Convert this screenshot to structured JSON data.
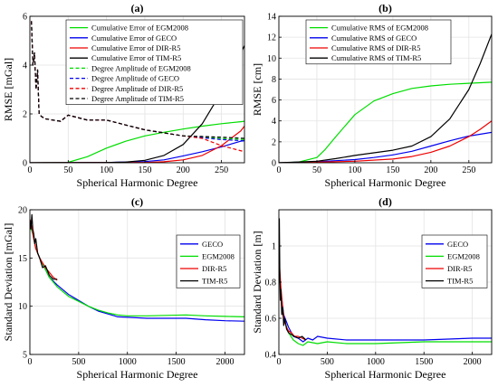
{
  "chart_data": [
    {
      "panel": "(a)",
      "type": "line",
      "xlabel": "Spherical Harmonic Degree",
      "ylabel": "RMSE [mGal]",
      "xlim": [
        0,
        280
      ],
      "ylim": [
        0,
        6
      ],
      "xticks": [
        0,
        50,
        100,
        150,
        200,
        250
      ],
      "yticks": [
        0,
        2,
        4,
        6
      ],
      "grid": true,
      "legend": "top-right",
      "series": [
        {
          "name": "Cumulative Error of EGM2008",
          "color": "#00dd00",
          "dash": "solid",
          "x": [
            0,
            50,
            75,
            100,
            125,
            150,
            175,
            200,
            225,
            250,
            275,
            280
          ],
          "y": [
            0,
            0.02,
            0.25,
            0.6,
            0.88,
            1.1,
            1.25,
            1.38,
            1.5,
            1.6,
            1.68,
            1.7
          ]
        },
        {
          "name": "Cumulative Error of GECO",
          "color": "#0000ee",
          "dash": "solid",
          "x": [
            0,
            100,
            150,
            175,
            200,
            225,
            250,
            275,
            280
          ],
          "y": [
            0,
            0.01,
            0.05,
            0.12,
            0.28,
            0.45,
            0.65,
            0.88,
            0.9
          ]
        },
        {
          "name": "Cumulative Error of DIR-R5",
          "color": "#ee0000",
          "dash": "solid",
          "x": [
            0,
            150,
            175,
            200,
            225,
            250,
            275,
            280
          ],
          "y": [
            0,
            0.01,
            0.04,
            0.12,
            0.3,
            0.7,
            1.3,
            1.5
          ]
        },
        {
          "name": "Cumulative Error of TIM-R5",
          "color": "#000000",
          "dash": "solid",
          "x": [
            0,
            100,
            125,
            150,
            175,
            200,
            225,
            250,
            265,
            280
          ],
          "y": [
            0,
            0.01,
            0.03,
            0.1,
            0.3,
            0.75,
            1.6,
            2.9,
            3.8,
            4.8
          ]
        },
        {
          "name": "Degree Amplitude of EGM2008",
          "color": "#00dd00",
          "dash": "dashed",
          "x": [
            2,
            4,
            6,
            8,
            10,
            12,
            15,
            20,
            30,
            40,
            50,
            75,
            100,
            150,
            200,
            250,
            280
          ],
          "y": [
            5.8,
            4.0,
            4.5,
            3.0,
            3.8,
            2.0,
            1.9,
            1.8,
            1.75,
            1.7,
            1.95,
            1.75,
            1.75,
            1.35,
            1.1,
            1.0,
            0.95
          ]
        },
        {
          "name": "Degree Amplitude of GECO",
          "color": "#0000ee",
          "dash": "dashed",
          "x": [
            2,
            4,
            6,
            8,
            10,
            12,
            15,
            20,
            30,
            40,
            50,
            75,
            100,
            150,
            200,
            250,
            280
          ],
          "y": [
            5.8,
            4.0,
            4.5,
            3.0,
            3.8,
            2.0,
            1.9,
            1.8,
            1.75,
            1.7,
            1.95,
            1.75,
            1.75,
            1.35,
            1.1,
            0.95,
            0.9
          ]
        },
        {
          "name": "Degree Amplitude of DIR-R5",
          "color": "#ee0000",
          "dash": "dashed",
          "x": [
            2,
            4,
            6,
            8,
            10,
            12,
            15,
            20,
            30,
            40,
            50,
            75,
            100,
            150,
            200,
            225,
            250,
            280
          ],
          "y": [
            5.8,
            4.0,
            4.5,
            3.0,
            3.8,
            2.0,
            1.9,
            1.8,
            1.75,
            1.7,
            1.95,
            1.75,
            1.75,
            1.35,
            1.1,
            1.0,
            0.7,
            0.45
          ]
        },
        {
          "name": "Degree Amplitude of TIM-R5",
          "color": "#000000",
          "dash": "dashed",
          "x": [
            2,
            4,
            6,
            8,
            10,
            12,
            15,
            20,
            30,
            40,
            50,
            75,
            100,
            150,
            200,
            250,
            280
          ],
          "y": [
            5.8,
            4.0,
            4.5,
            3.0,
            3.8,
            2.0,
            1.9,
            1.8,
            1.75,
            1.7,
            1.95,
            1.75,
            1.75,
            1.35,
            1.1,
            1.05,
            1.0
          ]
        }
      ]
    },
    {
      "panel": "(b)",
      "type": "line",
      "xlabel": "Spherical Harmonic Degree",
      "ylabel": "RMSE [cm]",
      "xlim": [
        0,
        280
      ],
      "ylim": [
        0,
        14
      ],
      "xticks": [
        0,
        50,
        100,
        150,
        200,
        250
      ],
      "yticks": [
        0,
        2,
        4,
        6,
        8,
        10,
        12,
        14
      ],
      "grid": true,
      "legend": "top-left",
      "series": [
        {
          "name": "Cumulative RMS of EGM2008",
          "color": "#00dd00",
          "dash": "solid",
          "x": [
            0,
            25,
            50,
            60,
            75,
            100,
            125,
            150,
            175,
            200,
            225,
            250,
            280
          ],
          "y": [
            0,
            0.05,
            0.5,
            1.2,
            2.5,
            4.6,
            5.9,
            6.6,
            7.1,
            7.35,
            7.5,
            7.6,
            7.7
          ]
        },
        {
          "name": "Cumulative RMS of GECO",
          "color": "#0000ee",
          "dash": "solid",
          "x": [
            0,
            50,
            100,
            125,
            150,
            175,
            200,
            225,
            250,
            280
          ],
          "y": [
            0,
            0.1,
            0.3,
            0.5,
            0.75,
            1.1,
            1.6,
            2.1,
            2.55,
            2.9
          ]
        },
        {
          "name": "Cumulative RMS of DIR-R5",
          "color": "#ee0000",
          "dash": "solid",
          "x": [
            0,
            50,
            100,
            150,
            175,
            200,
            225,
            250,
            265,
            280
          ],
          "y": [
            0,
            0.05,
            0.15,
            0.35,
            0.6,
            1.0,
            1.6,
            2.5,
            3.2,
            4.0
          ]
        },
        {
          "name": "Cumulative RMS of TIM-R5",
          "color": "#000000",
          "dash": "solid",
          "x": [
            0,
            50,
            75,
            100,
            125,
            150,
            175,
            200,
            225,
            250,
            265,
            280
          ],
          "y": [
            0,
            0.15,
            0.4,
            0.7,
            0.95,
            1.2,
            1.6,
            2.5,
            4.2,
            7.0,
            9.5,
            12.3
          ]
        }
      ]
    },
    {
      "panel": "(c)",
      "type": "line",
      "xlabel": "Spherical Harmonic Degree",
      "ylabel": "Standard Deviation [mGal]",
      "xlim": [
        0,
        2200
      ],
      "ylim": [
        5,
        20
      ],
      "xticks": [
        0,
        500,
        1000,
        1500,
        2000
      ],
      "yticks": [
        5,
        10,
        15,
        20
      ],
      "grid": true,
      "legend": "top-right",
      "series": [
        {
          "name": "GECO",
          "color": "#0000ee",
          "dash": "solid",
          "x": [
            0,
            30,
            60,
            100,
            150,
            200,
            280,
            400,
            500,
            600,
            700,
            800,
            900,
            1000,
            1200,
            1400,
            1600,
            1800,
            2000,
            2200
          ],
          "y": [
            18.5,
            17.5,
            16.0,
            15.0,
            14.0,
            13.0,
            12.2,
            11.2,
            10.6,
            10.0,
            9.5,
            9.2,
            8.9,
            8.85,
            8.75,
            8.75,
            8.75,
            8.6,
            8.5,
            8.45
          ]
        },
        {
          "name": "EGM2008",
          "color": "#00dd00",
          "dash": "solid",
          "x": [
            0,
            30,
            60,
            100,
            150,
            200,
            280,
            400,
            500,
            600,
            700,
            800,
            900,
            1000,
            1200,
            1400,
            1600,
            1800,
            2000,
            2200
          ],
          "y": [
            18.5,
            17.5,
            16.0,
            15.0,
            14.0,
            13.0,
            12.0,
            11.0,
            10.5,
            10.0,
            9.6,
            9.3,
            9.1,
            9.0,
            9.0,
            9.05,
            9.1,
            9.0,
            8.95,
            8.9
          ]
        },
        {
          "name": "DIR-R5",
          "color": "#ee0000",
          "dash": "solid",
          "x": [
            0,
            20,
            40,
            60,
            80,
            100,
            130,
            160,
            200,
            240,
            280
          ],
          "y": [
            19.0,
            18.2,
            17.0,
            16.0,
            15.5,
            15.0,
            14.5,
            14.0,
            13.5,
            13.0,
            12.7
          ]
        },
        {
          "name": "TIM-R5",
          "color": "#000000",
          "dash": "solid",
          "x": [
            0,
            10,
            20,
            30,
            40,
            50,
            60,
            80,
            100,
            130,
            160,
            200,
            240,
            280
          ],
          "y": [
            19.0,
            18.0,
            19.5,
            18.0,
            17.5,
            16.5,
            17.0,
            15.5,
            15.0,
            14.0,
            14.2,
            13.2,
            12.8,
            12.8
          ]
        }
      ]
    },
    {
      "panel": "(d)",
      "type": "line",
      "xlabel": "Spherical Harmonic Degree",
      "ylabel": "Standard Deviation [m]",
      "xlim": [
        0,
        2200
      ],
      "ylim": [
        0.4,
        1.2
      ],
      "xticks": [
        0,
        500,
        1000,
        1500,
        2000
      ],
      "yticks": [
        0.4,
        0.6,
        0.8,
        1
      ],
      "grid": true,
      "legend": "top-right",
      "series": [
        {
          "name": "GECO",
          "color": "#0000ee",
          "dash": "solid",
          "x": [
            0,
            20,
            50,
            100,
            150,
            200,
            250,
            300,
            350,
            400,
            500,
            700,
            1000,
            1500,
            2000,
            2200
          ],
          "y": [
            0.9,
            0.75,
            0.62,
            0.55,
            0.5,
            0.49,
            0.47,
            0.49,
            0.48,
            0.5,
            0.49,
            0.48,
            0.48,
            0.48,
            0.49,
            0.49
          ]
        },
        {
          "name": "EGM2008",
          "color": "#00dd00",
          "dash": "solid",
          "x": [
            0,
            20,
            50,
            100,
            150,
            200,
            250,
            300,
            400,
            500,
            700,
            1000,
            1500,
            2000,
            2200
          ],
          "y": [
            0.9,
            0.75,
            0.6,
            0.52,
            0.48,
            0.46,
            0.45,
            0.47,
            0.46,
            0.47,
            0.46,
            0.46,
            0.47,
            0.47,
            0.47
          ]
        },
        {
          "name": "DIR-R5",
          "color": "#ee0000",
          "dash": "solid",
          "x": [
            0,
            20,
            40,
            60,
            80,
            100,
            130,
            160,
            200,
            240,
            280
          ],
          "y": [
            0.95,
            0.78,
            0.65,
            0.58,
            0.55,
            0.53,
            0.52,
            0.5,
            0.5,
            0.49,
            0.48
          ]
        },
        {
          "name": "TIM-R5",
          "color": "#000000",
          "dash": "solid",
          "x": [
            0,
            5,
            10,
            15,
            20,
            30,
            40,
            50,
            60,
            80,
            100,
            130,
            160,
            200,
            240,
            280
          ],
          "y": [
            0.9,
            1.15,
            0.82,
            0.7,
            0.76,
            0.62,
            0.66,
            0.56,
            0.6,
            0.54,
            0.52,
            0.51,
            0.5,
            0.49,
            0.5,
            0.48
          ]
        }
      ]
    }
  ]
}
